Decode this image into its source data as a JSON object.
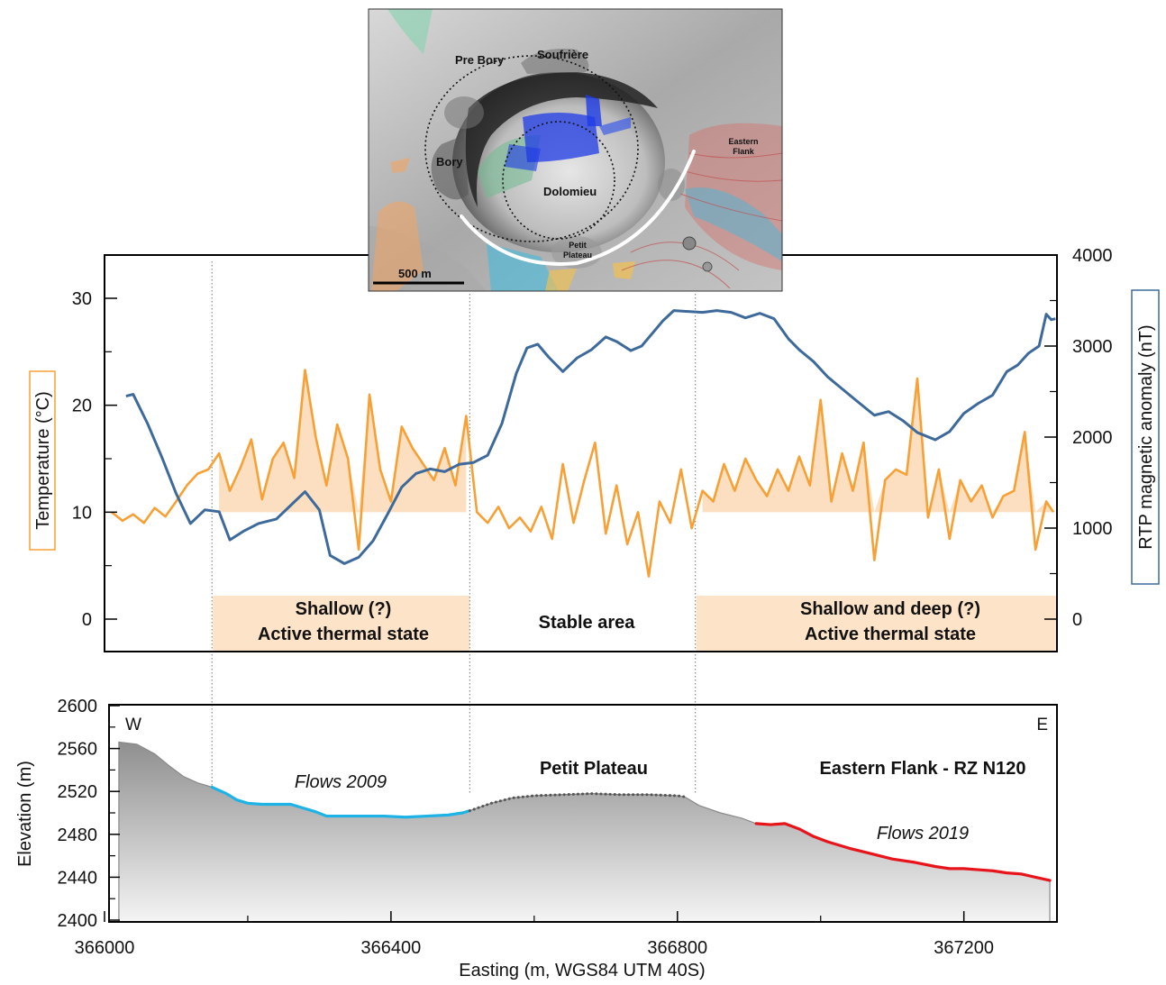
{
  "map_inset": {
    "labels": {
      "pre_bory": "Pre Bory",
      "soufriere": "Soufrière",
      "bory": "Bory",
      "dolomieu": "Dolomieu",
      "petit_plateau": "Petit\nPlateau",
      "eastern_flank": "Eastern\nFlank"
    },
    "scale_bar": "500 m"
  },
  "chart_data": [
    {
      "type": "line",
      "panel": "temperature_magnetic",
      "ylabel_left": "Temperature (°C)",
      "ylabel_right": "RTP magnetic anomaly (nT)",
      "xlim": [
        366000,
        367330
      ],
      "ylim_left": [
        -3,
        30
      ],
      "ylim_right": [
        0,
        4000
      ],
      "yticks_left": [
        0,
        10,
        20,
        30
      ],
      "yticks_right": [
        0,
        1000,
        2000,
        3000,
        4000
      ],
      "baseline_temperature": 10,
      "colors": {
        "temperature": "#f7a035",
        "magnetic": "#3d6a9a",
        "zone_fill": "#fde3c8"
      },
      "series": [
        {
          "name": "Temperature",
          "axis": "left",
          "x": [
            366010,
            366025,
            366040,
            366055,
            366070,
            366085,
            366100,
            366115,
            366130,
            366145,
            366160,
            366175,
            366190,
            366205,
            366220,
            366235,
            366250,
            366265,
            366280,
            366295,
            366310,
            366325,
            366340,
            366355,
            366370,
            366385,
            366400,
            366415,
            366430,
            366445,
            366460,
            366475,
            366490,
            366505,
            366520,
            366535,
            366550,
            366565,
            366580,
            366595,
            366610,
            366625,
            366640,
            366655,
            366670,
            366685,
            366700,
            366715,
            366730,
            366745,
            366760,
            366775,
            366790,
            366805,
            366820,
            366835,
            366850,
            366865,
            366880,
            366895,
            366910,
            366925,
            366940,
            366955,
            366970,
            366985,
            367000,
            367015,
            367030,
            367045,
            367060,
            367075,
            367090,
            367105,
            367120,
            367135,
            367150,
            367165,
            367180,
            367195,
            367210,
            367225,
            367240,
            367255,
            367270,
            367285,
            367300,
            367315,
            367325
          ],
          "values": [
            10,
            9.2,
            9.8,
            9,
            10.4,
            9.6,
            11,
            12.5,
            13.6,
            14,
            15.5,
            12,
            14.2,
            16.8,
            11.2,
            15,
            16.5,
            13.2,
            23.3,
            17,
            12.5,
            18.2,
            15,
            6.5,
            21,
            14,
            11,
            18,
            16,
            14.5,
            13,
            16,
            12.5,
            19,
            10,
            9,
            10.5,
            8.5,
            9.5,
            8.2,
            10.5,
            7.5,
            14.5,
            9,
            13,
            16.5,
            8,
            12.5,
            7,
            10,
            4,
            11,
            9,
            14,
            8.5,
            12,
            11,
            14.5,
            12,
            15,
            13,
            11.5,
            14,
            12,
            15.2,
            12.5,
            20.5,
            11,
            15.5,
            12,
            16.5,
            5.5,
            13,
            14,
            13.5,
            22.5,
            9.5,
            14,
            7.5,
            13,
            11,
            12.5,
            9.5,
            11.5,
            12,
            17.5,
            6.5,
            11,
            10
          ]
        },
        {
          "name": "RTP magnetic anomaly",
          "axis": "right",
          "x": [
            366030,
            366040,
            366060,
            366080,
            366100,
            366120,
            366140,
            366160,
            366175,
            366195,
            366215,
            366240,
            366260,
            366280,
            366300,
            366315,
            366335,
            366355,
            366375,
            366395,
            366415,
            366435,
            366455,
            366475,
            366495,
            366515,
            366535,
            366555,
            366575,
            366590,
            366605,
            366620,
            366640,
            366660,
            366680,
            366700,
            366715,
            366735,
            366750,
            366765,
            366780,
            366795,
            366815,
            366835,
            366855,
            366875,
            366895,
            366915,
            366935,
            366955,
            366970,
            366990,
            367010,
            367030,
            367050,
            367075,
            367095,
            367115,
            367135,
            367160,
            367180,
            367200,
            367220,
            367240,
            367260,
            367275,
            367290,
            367305,
            367315,
            367322,
            367328
          ],
          "values": [
            2450,
            2470,
            2150,
            1780,
            1380,
            1050,
            1200,
            1180,
            870,
            970,
            1050,
            1100,
            1250,
            1400,
            1200,
            700,
            610,
            680,
            860,
            1150,
            1450,
            1600,
            1650,
            1620,
            1700,
            1720,
            1800,
            2150,
            2700,
            2980,
            3020,
            2880,
            2720,
            2870,
            2960,
            3100,
            3050,
            2950,
            3000,
            3140,
            3280,
            3390,
            3380,
            3370,
            3390,
            3370,
            3310,
            3360,
            3300,
            3080,
            2960,
            2830,
            2660,
            2530,
            2400,
            2240,
            2280,
            2180,
            2050,
            1970,
            2060,
            2260,
            2370,
            2460,
            2720,
            2790,
            2920,
            3000,
            3350,
            3290,
            3300
          ]
        }
      ],
      "zones": [
        {
          "label_line1": "Shallow (?)",
          "label_line2": "Active thermal state",
          "x_start": 366150,
          "x_end": 366510,
          "filled": true
        },
        {
          "label_line1": "Stable area",
          "label_line2": "",
          "x_start": 366510,
          "x_end": 366825,
          "filled": false
        },
        {
          "label_line1": "Shallow and deep (?)",
          "label_line2": "Active thermal state",
          "x_start": 366825,
          "x_end": 367330,
          "filled": true
        }
      ],
      "dividers_x": [
        366150,
        366510,
        366825
      ]
    },
    {
      "type": "area",
      "panel": "elevation_profile",
      "xlabel": "Easting (m, WGS84 UTM 40S)",
      "ylabel": "Elevation (m)",
      "xlim": [
        366000,
        367330
      ],
      "ylim": [
        2400,
        2600
      ],
      "xticks": [
        366000,
        366400,
        366800,
        367200
      ],
      "yticks": [
        2400,
        2440,
        2480,
        2520,
        2560,
        2600
      ],
      "direction_left": "W",
      "direction_right": "E",
      "profile": {
        "x": [
          366020,
          366045,
          366070,
          366090,
          366110,
          366130,
          366150,
          366170,
          366185,
          366200,
          366220,
          366240,
          366260,
          366280,
          366295,
          366310,
          366330,
          366360,
          366390,
          366420,
          366450,
          366480,
          366500,
          366510,
          366540,
          366570,
          366600,
          366640,
          366680,
          366720,
          366760,
          366800,
          366810,
          366830,
          366860,
          366890,
          366910,
          366930,
          366950,
          366970,
          366990,
          367010,
          367040,
          367070,
          367100,
          367130,
          367160,
          367180,
          367200,
          367220,
          367240,
          367260,
          367280,
          367300,
          367320
        ],
        "values": [
          2566,
          2564,
          2555,
          2544,
          2534,
          2528,
          2524,
          2518,
          2512,
          2509,
          2508,
          2508,
          2508,
          2504,
          2501,
          2497,
          2497,
          2497,
          2497,
          2496,
          2497,
          2498,
          2500,
          2502,
          2509,
          2514,
          2516,
          2517,
          2518,
          2517,
          2517,
          2516,
          2515,
          2507,
          2500,
          2495,
          2490,
          2489,
          2490,
          2485,
          2478,
          2473,
          2467,
          2462,
          2457,
          2454,
          2450,
          2448,
          2448,
          2447,
          2446,
          2444,
          2443,
          2440,
          2437
        ]
      },
      "segments": [
        {
          "name": "Flows 2009",
          "x_start": 366150,
          "x_end": 366510,
          "color": "#1db3e6",
          "style": "solid"
        },
        {
          "name": "Petit Plateau",
          "x_start": 366510,
          "x_end": 366810,
          "color": "#555555",
          "style": "dotted"
        },
        {
          "name": "Flows 2019",
          "x_start": 366910,
          "x_end": 367320,
          "color": "#e8141b",
          "style": "solid"
        }
      ],
      "annotations": {
        "flows_2009": "Flows 2009",
        "petit_plateau": "Petit Plateau",
        "eastern_flank": "Eastern Flank - RZ N120",
        "flows_2019": "Flows 2019"
      }
    }
  ]
}
